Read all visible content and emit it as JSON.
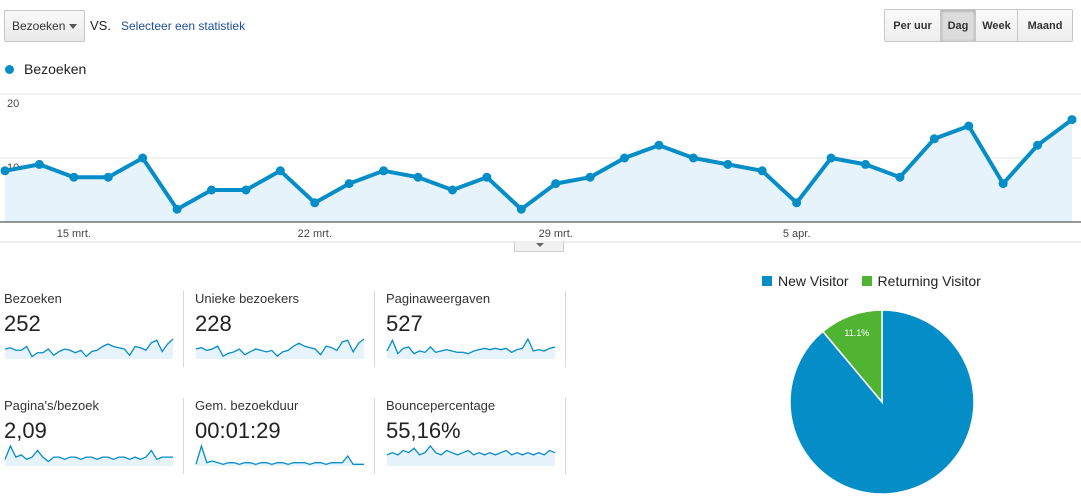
{
  "toolbar": {
    "metric_select": "Bezoeken",
    "vs_label": "VS.",
    "compare_link": "Selecteer een statistiek",
    "periods": [
      {
        "label": "Per uur",
        "active": false
      },
      {
        "label": "Dag",
        "active": true
      },
      {
        "label": "Week",
        "active": false
      },
      {
        "label": "Maand",
        "active": false
      }
    ]
  },
  "colors": {
    "series": "#058dc7",
    "series_fill": "#e6f3fa",
    "returning": "#50b432",
    "grid": "#e5e5e5",
    "link": "#1c4f9c"
  },
  "chart_data": [
    {
      "type": "area",
      "title": "",
      "legend": "Bezoeken",
      "legend_position": "top-left",
      "grid": true,
      "ylim": [
        0,
        20
      ],
      "y_ticks": [
        {
          "value": 20,
          "label": "20"
        },
        {
          "value": 10,
          "label": "10"
        }
      ],
      "x_tick_labels": [
        {
          "index": 2,
          "label": "15 mrt."
        },
        {
          "index": 9,
          "label": "22 mrt."
        },
        {
          "index": 16,
          "label": "29 mrt."
        },
        {
          "index": 23,
          "label": "5 apr."
        }
      ],
      "series": [
        {
          "name": "Bezoeken",
          "values": [
            8,
            9,
            7,
            7,
            10,
            2,
            5,
            5,
            8,
            3,
            6,
            8,
            7,
            5,
            7,
            2,
            6,
            7,
            10,
            12,
            10,
            9,
            8,
            3,
            10,
            9,
            7,
            13,
            15,
            6,
            12,
            16
          ]
        }
      ]
    },
    {
      "type": "pie",
      "title": "",
      "legend_position": "top",
      "slices": [
        {
          "name": "New Visitor",
          "value": 88.9,
          "label": "88.9%",
          "color": "#058dc7"
        },
        {
          "name": "Returning Visitor",
          "value": 11.1,
          "label": "11.1%",
          "color": "#50b432"
        }
      ]
    }
  ],
  "scorecards": [
    {
      "label": "Bezoeken",
      "value": "252",
      "spark": [
        8,
        9,
        7,
        7,
        10,
        2,
        5,
        5,
        8,
        3,
        6,
        8,
        7,
        5,
        7,
        2,
        6,
        7,
        10,
        12,
        10,
        9,
        8,
        3,
        10,
        9,
        7,
        13,
        15,
        6,
        12,
        16
      ]
    },
    {
      "label": "Unieke bezoekers",
      "value": "228",
      "spark": [
        7,
        8,
        6,
        7,
        9,
        2,
        4,
        5,
        7,
        3,
        5,
        7,
        6,
        5,
        6,
        2,
        5,
        6,
        9,
        11,
        9,
        8,
        7,
        3,
        9,
        8,
        6,
        12,
        13,
        5,
        11,
        14
      ]
    },
    {
      "label": "Paginaweergaven",
      "value": "527",
      "spark": [
        6,
        14,
        4,
        8,
        9,
        4,
        6,
        5,
        9,
        5,
        6,
        7,
        6,
        5,
        5,
        4,
        6,
        7,
        8,
        7,
        8,
        7,
        8,
        5,
        7,
        8,
        15,
        6,
        7,
        6,
        8,
        9
      ]
    },
    {
      "label": "Pagina's/bezoek",
      "value": "2,09",
      "spark": [
        3,
        9,
        4,
        5,
        3,
        4,
        7,
        4,
        2,
        4,
        4,
        3,
        4,
        4,
        3,
        4,
        4,
        3,
        4,
        4,
        3,
        4,
        4,
        3,
        4,
        3,
        4,
        7,
        3,
        4,
        4,
        4
      ]
    },
    {
      "label": "Gem. bezoekduur",
      "value": "00:01:29",
      "spark": [
        1,
        12,
        2,
        3,
        2,
        1,
        2,
        2,
        1,
        2,
        2,
        1,
        2,
        2,
        1,
        2,
        2,
        1,
        2,
        2,
        2,
        1,
        2,
        2,
        1,
        2,
        2,
        2,
        6,
        1,
        1,
        1
      ]
    },
    {
      "label": "Bouncepercentage",
      "value": "55,16%",
      "spark": [
        5,
        6,
        5,
        7,
        6,
        8,
        5,
        6,
        9,
        6,
        5,
        7,
        6,
        5,
        6,
        7,
        5,
        6,
        5,
        6,
        5,
        6,
        7,
        5,
        6,
        5,
        6,
        5,
        6,
        5,
        7,
        6
      ]
    }
  ]
}
